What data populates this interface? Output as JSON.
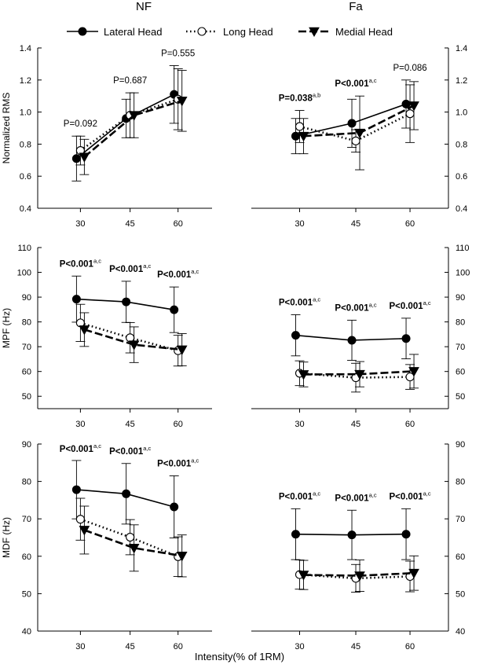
{
  "chart_data": {
    "type": "line",
    "layout": "3 rows x 2 columns of panels; shared legend at top; shared x-axis title at bottom",
    "column_titles": [
      "NF",
      "Fa"
    ],
    "legend": {
      "placement": "top",
      "entries": [
        {
          "name": "Lateral Head",
          "line": "solid",
          "marker": "filled-circle"
        },
        {
          "name": "Long Head",
          "line": "dotted",
          "marker": "open-circle"
        },
        {
          "name": "Medial Head",
          "line": "dashed",
          "marker": "filled-triangle-down"
        }
      ]
    },
    "xlabel": "Intensity(% of 1RM)",
    "categories": [
      "30",
      "45",
      "60"
    ],
    "series_style": {
      "Lateral Head": {
        "line": "solid",
        "marker": "filled-circle"
      },
      "Long Head": {
        "line": "dotted",
        "marker": "open-circle"
      },
      "Medial Head": {
        "line": "dashed",
        "marker": "filled-triangle-down"
      }
    },
    "rows": [
      {
        "ylabel": "Normalized RMS",
        "ylim": [
          0.4,
          1.4
        ],
        "yticks": [
          "0.4",
          "0.6",
          "0.8",
          "1.0",
          "1.2",
          "1.4"
        ],
        "panels": [
          {
            "column": "NF",
            "series": [
              {
                "name": "Lateral Head",
                "values": [
                  0.71,
                  0.96,
                  1.11
                ],
                "err": [
                  0.14,
                  0.12,
                  0.18
                ]
              },
              {
                "name": "Long Head",
                "values": [
                  0.76,
                  0.98,
                  1.08
                ],
                "err": [
                  0.09,
                  0.14,
                  0.19
                ]
              },
              {
                "name": "Medial Head",
                "values": [
                  0.72,
                  0.98,
                  1.07
                ],
                "err": [
                  0.11,
                  0.14,
                  0.19
                ]
              }
            ],
            "annotations": [
              {
                "text": "P=0.092",
                "sup": "",
                "bold": false,
                "x": "30"
              },
              {
                "text": "P=0.687",
                "sup": "",
                "bold": false,
                "x": "45"
              },
              {
                "text": "P=0.555",
                "sup": "",
                "bold": false,
                "x": "60"
              }
            ]
          },
          {
            "column": "Fa",
            "series": [
              {
                "name": "Lateral Head",
                "values": [
                  0.85,
                  0.93,
                  1.05
                ],
                "err": [
                  0.11,
                  0.15,
                  0.15
                ]
              },
              {
                "name": "Long Head",
                "values": [
                  0.91,
                  0.82,
                  0.99
                ],
                "err": [
                  0.1,
                  0.07,
                  0.18
                ]
              },
              {
                "name": "Medial Head",
                "values": [
                  0.85,
                  0.87,
                  1.04
                ],
                "err": [
                  0.11,
                  0.23,
                  0.15
                ]
              }
            ],
            "annotations": [
              {
                "text": "P=0.038",
                "sup": "a,b",
                "bold": true,
                "x": "30"
              },
              {
                "text": "P<0.001",
                "sup": "a,c",
                "bold": true,
                "x": "45"
              },
              {
                "text": "P=0.086",
                "sup": "",
                "bold": false,
                "x": "60"
              }
            ]
          }
        ]
      },
      {
        "ylabel": "MPF (Hz)",
        "ylim": [
          45,
          110
        ],
        "yticks": [
          "50",
          "60",
          "70",
          "80",
          "90",
          "100",
          "110"
        ],
        "panels": [
          {
            "column": "NF",
            "series": [
              {
                "name": "Lateral Head",
                "values": [
                  89.2,
                  88.1,
                  84.9
                ],
                "err": [
                  9.3,
                  8.3,
                  9.2
                ]
              },
              {
                "name": "Long Head",
                "values": [
                  79.6,
                  73.6,
                  68.4
                ],
                "err": [
                  7.5,
                  6.1,
                  6.2
                ]
              },
              {
                "name": "Medial Head",
                "values": [
                  76.9,
                  70.8,
                  68.8
                ],
                "err": [
                  6.8,
                  7.2,
                  6.5
                ]
              }
            ],
            "annotations": [
              {
                "text": "P<0.001",
                "sup": "a,c",
                "bold": true,
                "x": "30"
              },
              {
                "text": "P<0.001",
                "sup": "a,c",
                "bold": true,
                "x": "45"
              },
              {
                "text": "P<0.001",
                "sup": "a,c",
                "bold": true,
                "x": "60"
              }
            ]
          },
          {
            "column": "Fa",
            "series": [
              {
                "name": "Lateral Head",
                "values": [
                  74.6,
                  72.6,
                  73.3
                ],
                "err": [
                  8.3,
                  8.1,
                  8.2
                ]
              },
              {
                "name": "Long Head",
                "values": [
                  59.3,
                  57.5,
                  57.8
                ],
                "err": [
                  5.0,
                  5.8,
                  5.0
                ]
              },
              {
                "name": "Medial Head",
                "values": [
                  58.8,
                  58.9,
                  60.1
                ],
                "err": [
                  5.0,
                  5.1,
                  6.8
                ]
              }
            ],
            "annotations": [
              {
                "text": "P<0.001",
                "sup": "a,c",
                "bold": true,
                "x": "30"
              },
              {
                "text": "P<0.001",
                "sup": "a,c",
                "bold": true,
                "x": "45"
              },
              {
                "text": "P<0.001",
                "sup": "a,c",
                "bold": true,
                "x": "60"
              }
            ]
          }
        ]
      },
      {
        "ylabel": "MDF (Hz)",
        "ylim": [
          40,
          90
        ],
        "yticks": [
          "40",
          "50",
          "60",
          "70",
          "80",
          "90"
        ],
        "panels": [
          {
            "column": "NF",
            "series": [
              {
                "name": "Lateral Head",
                "values": [
                  77.8,
                  76.7,
                  73.2
                ],
                "err": [
                  7.8,
                  8.1,
                  8.3
                ]
              },
              {
                "name": "Long Head",
                "values": [
                  69.9,
                  65.1,
                  59.9
                ],
                "err": [
                  5.6,
                  4.7,
                  5.3
                ]
              },
              {
                "name": "Medial Head",
                "values": [
                  67.0,
                  62.2,
                  60.1
                ],
                "err": [
                  6.4,
                  6.2,
                  5.6
                ]
              }
            ],
            "annotations": [
              {
                "text": "P<0.001",
                "sup": "a,c",
                "bold": true,
                "x": "30"
              },
              {
                "text": "P<0.001",
                "sup": "a,c",
                "bold": true,
                "x": "45"
              },
              {
                "text": "P<0.001",
                "sup": "a,c",
                "bold": true,
                "x": "60"
              }
            ]
          },
          {
            "column": "Fa",
            "series": [
              {
                "name": "Lateral Head",
                "values": [
                  65.9,
                  65.7,
                  65.9
                ],
                "err": [
                  6.8,
                  6.6,
                  6.8
                ]
              },
              {
                "name": "Long Head",
                "values": [
                  55.1,
                  54.1,
                  54.6
                ],
                "err": [
                  3.9,
                  3.7,
                  4.1
                ]
              },
              {
                "name": "Medial Head",
                "values": [
                  55.0,
                  54.8,
                  55.5
                ],
                "err": [
                  3.9,
                  4.2,
                  4.6
                ]
              }
            ],
            "annotations": [
              {
                "text": "P<0.001",
                "sup": "a,c",
                "bold": true,
                "x": "30"
              },
              {
                "text": "P<0.001",
                "sup": "a,c",
                "bold": true,
                "x": "45"
              },
              {
                "text": "P<0.001",
                "sup": "a,c",
                "bold": true,
                "x": "60"
              }
            ]
          }
        ]
      }
    ]
  }
}
